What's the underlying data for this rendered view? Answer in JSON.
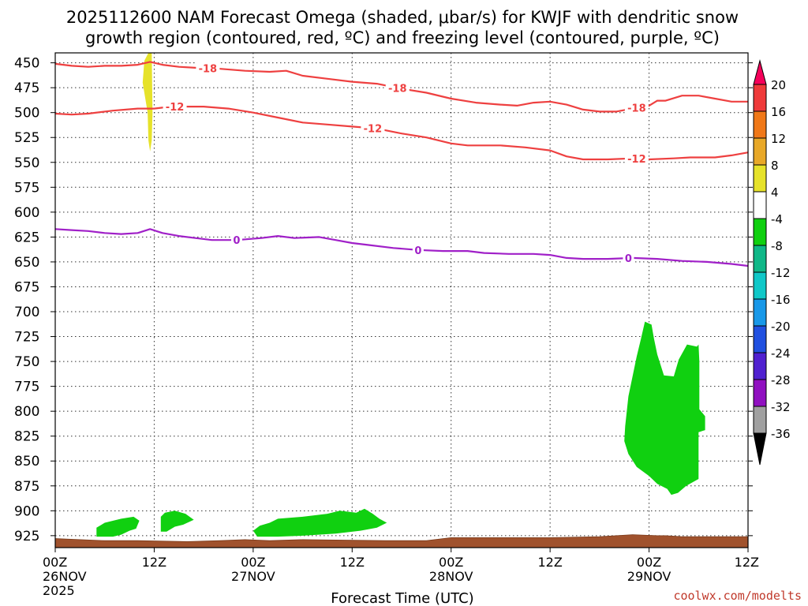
{
  "chart_data": {
    "type": "time-height",
    "title_line1": "2025112600 NAM Forecast Omega (shaded, μbar/s) for KWJF with dendritic snow",
    "title_line2": "growth region (contoured, red, ºC) and freezing level (contoured, purple, ºC)",
    "xlabel": "Forecast Time (UTC)",
    "credit": "coolwx.com/modelts",
    "x_range_hours": [
      0,
      84
    ],
    "x_ticks": [
      {
        "hour": 0,
        "l1": "00Z",
        "l2": "26NOV",
        "l3": "2025"
      },
      {
        "hour": 12,
        "l1": "12Z",
        "l2": "",
        "l3": ""
      },
      {
        "hour": 24,
        "l1": "00Z",
        "l2": "27NOV",
        "l3": ""
      },
      {
        "hour": 36,
        "l1": "12Z",
        "l2": "",
        "l3": ""
      },
      {
        "hour": 48,
        "l1": "00Z",
        "l2": "28NOV",
        "l3": ""
      },
      {
        "hour": 60,
        "l1": "12Z",
        "l2": "",
        "l3": ""
      },
      {
        "hour": 72,
        "l1": "00Z",
        "l2": "29NOV",
        "l3": ""
      },
      {
        "hour": 84,
        "l1": "12Z",
        "l2": "",
        "l3": ""
      }
    ],
    "y_range_hpa": [
      440,
      937
    ],
    "y_ticks": [
      "450",
      "475",
      "500",
      "525",
      "550",
      "575",
      "600",
      "625",
      "650",
      "675",
      "700",
      "725",
      "750",
      "775",
      "800",
      "825",
      "850",
      "875",
      "900",
      "925"
    ],
    "colorbar": {
      "labels": [
        "20",
        "16",
        "12",
        "8",
        "4",
        "-4",
        "-8",
        "-12",
        "-16",
        "-20",
        "-24",
        "-28",
        "-32",
        "-36"
      ],
      "colors": [
        "#f5005a",
        "#ef3a3a",
        "#f07818",
        "#e8a828",
        "#e6e22a",
        "#ffffff",
        "#10d010",
        "#10b888",
        "#10c8c8",
        "#1898e8",
        "#2050e0",
        "#5020d0",
        "#9010c0",
        "#a0a0a0",
        "#000000"
      ]
    },
    "contours": [
      {
        "name": "-18C isotherm",
        "color": "#ee4040",
        "label": "-18",
        "label_hours": [
          18.5,
          41.5,
          70.5
        ],
        "points": [
          [
            0,
            451
          ],
          [
            2,
            453
          ],
          [
            4,
            454
          ],
          [
            6,
            453
          ],
          [
            8,
            453
          ],
          [
            10,
            452
          ],
          [
            11.5,
            449
          ],
          [
            13,
            452
          ],
          [
            15,
            454
          ],
          [
            17,
            455
          ],
          [
            20,
            456
          ],
          [
            23,
            458
          ],
          [
            26,
            459
          ],
          [
            28,
            458
          ],
          [
            30,
            463
          ],
          [
            33,
            466
          ],
          [
            36,
            469
          ],
          [
            39,
            471
          ],
          [
            42,
            476
          ],
          [
            45,
            480
          ],
          [
            48,
            486
          ],
          [
            51,
            490
          ],
          [
            54,
            492
          ],
          [
            56,
            493
          ],
          [
            58,
            490
          ],
          [
            60,
            489
          ],
          [
            62,
            492
          ],
          [
            64,
            497
          ],
          [
            66,
            499
          ],
          [
            68,
            499
          ],
          [
            70,
            496
          ],
          [
            72,
            493
          ],
          [
            73,
            488
          ],
          [
            74,
            488
          ],
          [
            76,
            483
          ],
          [
            78,
            483
          ],
          [
            80,
            486
          ],
          [
            82,
            489
          ],
          [
            84,
            489
          ]
        ]
      },
      {
        "name": "-12C isotherm",
        "color": "#ee4040",
        "label": "-12",
        "label_hours": [
          14.5,
          38.5,
          70.5
        ],
        "points": [
          [
            0,
            501
          ],
          [
            2,
            502
          ],
          [
            4,
            501
          ],
          [
            7,
            498
          ],
          [
            10,
            496
          ],
          [
            12,
            496
          ],
          [
            14,
            494
          ],
          [
            18,
            494
          ],
          [
            21,
            496
          ],
          [
            24,
            500
          ],
          [
            27,
            505
          ],
          [
            30,
            510
          ],
          [
            33,
            512
          ],
          [
            36,
            514
          ],
          [
            39,
            516
          ],
          [
            42,
            521
          ],
          [
            45,
            525
          ],
          [
            48,
            531
          ],
          [
            50,
            533
          ],
          [
            54,
            533
          ],
          [
            57,
            535
          ],
          [
            60,
            538
          ],
          [
            62,
            544
          ],
          [
            64,
            547
          ],
          [
            67,
            547
          ],
          [
            70,
            546
          ],
          [
            72,
            547
          ],
          [
            75,
            546
          ],
          [
            77,
            545
          ],
          [
            80,
            545
          ],
          [
            82,
            543
          ],
          [
            84,
            540
          ]
        ]
      },
      {
        "name": "0C freezing level",
        "color": "#a020c8",
        "label": "0",
        "label_hours": [
          22,
          44,
          69.5
        ],
        "points": [
          [
            0,
            617
          ],
          [
            2,
            618
          ],
          [
            4,
            619
          ],
          [
            6,
            621
          ],
          [
            8,
            622
          ],
          [
            10,
            621
          ],
          [
            11.5,
            617
          ],
          [
            13,
            621
          ],
          [
            15,
            624
          ],
          [
            17,
            626
          ],
          [
            19,
            628
          ],
          [
            22,
            628
          ],
          [
            25,
            626
          ],
          [
            27,
            624
          ],
          [
            29,
            626
          ],
          [
            32,
            625
          ],
          [
            34,
            628
          ],
          [
            36,
            631
          ],
          [
            38,
            633
          ],
          [
            41,
            636
          ],
          [
            44,
            638
          ],
          [
            47,
            639
          ],
          [
            50,
            639
          ],
          [
            52,
            641
          ],
          [
            55,
            642
          ],
          [
            58,
            642
          ],
          [
            60,
            643
          ],
          [
            62,
            646
          ],
          [
            64,
            647
          ],
          [
            67,
            647
          ],
          [
            70,
            646
          ],
          [
            73,
            647
          ],
          [
            76,
            649
          ],
          [
            79,
            650
          ],
          [
            82,
            652
          ],
          [
            84,
            654
          ]
        ]
      }
    ],
    "shaded_regions": [
      {
        "name": "omega +4 to +8 band",
        "color": "#e6e22a",
        "points": [
          [
            10.8,
            448
          ],
          [
            11.3,
            440
          ],
          [
            11.7,
            440
          ],
          [
            11.8,
            500
          ],
          [
            11.7,
            528
          ],
          [
            11.5,
            539
          ],
          [
            11.3,
            528
          ],
          [
            11.2,
            500
          ],
          [
            10.6,
            470
          ]
        ]
      },
      {
        "name": "omega -4 to -8 area 1",
        "color": "#10d010",
        "points": [
          [
            5,
            917
          ],
          [
            6,
            912
          ],
          [
            8,
            908
          ],
          [
            9.5,
            906
          ],
          [
            10.2,
            910
          ],
          [
            9.8,
            918
          ],
          [
            9,
            920
          ],
          [
            8,
            924
          ],
          [
            7,
            926
          ],
          [
            5,
            926
          ]
        ]
      },
      {
        "name": "omega -4 to -8 area 2",
        "color": "#10d010",
        "points": [
          [
            12.8,
            906
          ],
          [
            13.3,
            902
          ],
          [
            14.5,
            900
          ],
          [
            15.8,
            903
          ],
          [
            16.8,
            909
          ],
          [
            15.5,
            914
          ],
          [
            14.5,
            916
          ],
          [
            13.5,
            921
          ],
          [
            12.8,
            921
          ]
        ]
      },
      {
        "name": "omega -4 to -8 area 3",
        "color": "#10d010",
        "points": [
          [
            24,
            920
          ],
          [
            24.8,
            915
          ],
          [
            26,
            912
          ],
          [
            27,
            908
          ],
          [
            30,
            906
          ],
          [
            33,
            903
          ],
          [
            34.5,
            900
          ],
          [
            36.5,
            902
          ],
          [
            37.5,
            898
          ],
          [
            38.5,
            903
          ],
          [
            39.3,
            908
          ],
          [
            40.2,
            912
          ],
          [
            39,
            917
          ],
          [
            37,
            920
          ],
          [
            34,
            923
          ],
          [
            30,
            925
          ],
          [
            27,
            926
          ],
          [
            24.5,
            926
          ]
        ]
      },
      {
        "name": "omega -4 to -8 area 4",
        "color": "#10d010",
        "points": [
          [
            69.5,
            785
          ],
          [
            70.5,
            745
          ],
          [
            71,
            728
          ],
          [
            71.5,
            710
          ],
          [
            72.3,
            713
          ],
          [
            72.6,
            727
          ],
          [
            73,
            743
          ],
          [
            73.8,
            764
          ],
          [
            75,
            765
          ],
          [
            75.6,
            748
          ],
          [
            76.6,
            733
          ],
          [
            77.8,
            735
          ],
          [
            78,
            733
          ],
          [
            78.1,
            750
          ],
          [
            78.1,
            798
          ],
          [
            78.8,
            805
          ],
          [
            78.8,
            819
          ],
          [
            78,
            821
          ],
          [
            78,
            868
          ],
          [
            76.5,
            875
          ],
          [
            75.5,
            882
          ],
          [
            74.7,
            884
          ],
          [
            74.2,
            878
          ],
          [
            73,
            873
          ],
          [
            72,
            865
          ],
          [
            70.5,
            856
          ],
          [
            69.5,
            843
          ],
          [
            69,
            830
          ],
          [
            69.1,
            815
          ]
        ]
      }
    ],
    "terrain": {
      "name": "ground surface",
      "color": "#a0522d",
      "top_hpa": [
        [
          0,
          928
        ],
        [
          3,
          929
        ],
        [
          6,
          930
        ],
        [
          10,
          930
        ],
        [
          16,
          931
        ],
        [
          20,
          930
        ],
        [
          23,
          929
        ],
        [
          26,
          930
        ],
        [
          30,
          929
        ],
        [
          40,
          930
        ],
        [
          45,
          930
        ],
        [
          48,
          927
        ],
        [
          54,
          927
        ],
        [
          60,
          927
        ],
        [
          66,
          926
        ],
        [
          70,
          924
        ],
        [
          73,
          925
        ],
        [
          74,
          925
        ],
        [
          76,
          926
        ],
        [
          84,
          926
        ]
      ]
    }
  }
}
